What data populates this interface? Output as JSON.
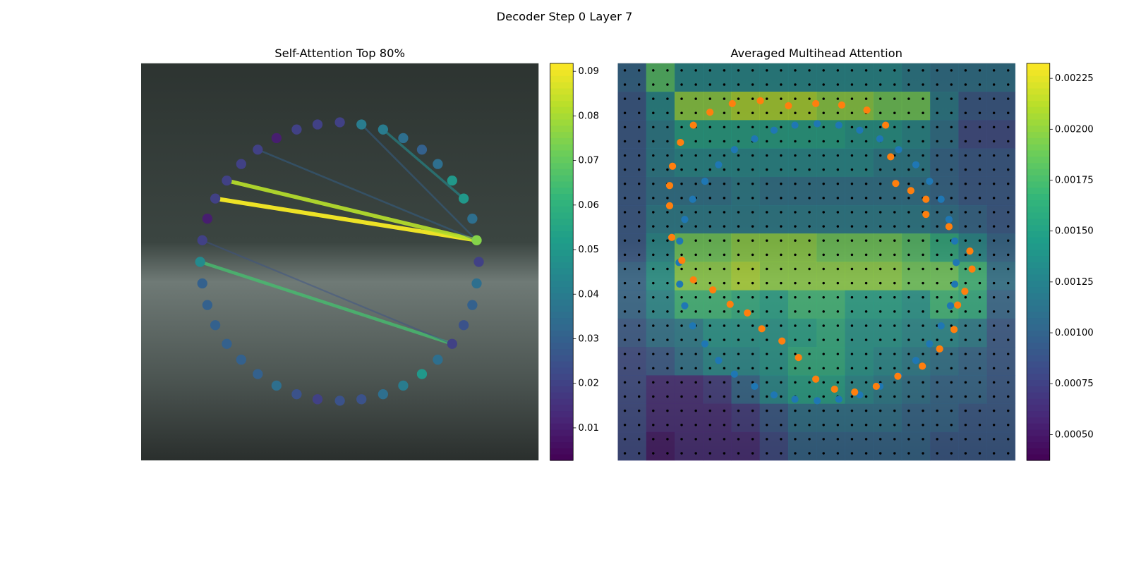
{
  "title": "Decoder Step 0 Layer 7",
  "chart_data": [
    {
      "type": "scatter",
      "title": "Self-Attention Top 80%",
      "colormap": "viridis",
      "xlim": [
        0,
        552
      ],
      "ylim": [
        552,
        0
      ],
      "x": [
        276,
        306,
        336,
        364,
        390,
        412,
        432,
        448,
        460,
        466,
        469,
        466,
        460,
        448,
        432,
        412,
        390,
        364,
        336,
        306,
        276,
        245,
        216,
        188,
        162,
        139,
        119,
        103,
        92,
        85,
        82,
        85,
        92,
        103,
        119,
        139,
        162,
        188,
        216,
        245
      ],
      "y": [
        82,
        85,
        92,
        104,
        120,
        140,
        163,
        188,
        216,
        246,
        276,
        306,
        336,
        364,
        390,
        412,
        432,
        448,
        460,
        467,
        469,
        467,
        460,
        448,
        432,
        412,
        390,
        364,
        336,
        306,
        276,
        246,
        216,
        188,
        163,
        140,
        120,
        104,
        92,
        85
      ],
      "values": [
        0.02,
        0.04,
        0.04,
        0.035,
        0.03,
        0.035,
        0.05,
        0.05,
        0.035,
        0.075,
        0.02,
        0.035,
        0.03,
        0.025,
        0.02,
        0.035,
        0.05,
        0.04,
        0.035,
        0.025,
        0.025,
        0.02,
        0.025,
        0.035,
        0.03,
        0.03,
        0.03,
        0.03,
        0.03,
        0.03,
        0.045,
        0.02,
        0.01,
        0.02,
        0.02,
        0.02,
        0.02,
        0.01,
        0.02,
        0.02
      ],
      "edges": [
        {
          "source": 33,
          "target": 9,
          "value": 0.09
        },
        {
          "source": 34,
          "target": 9,
          "value": 0.082
        },
        {
          "source": 30,
          "target": 14,
          "value": 0.065
        },
        {
          "source": 2,
          "target": 7,
          "value": 0.045
        },
        {
          "source": 36,
          "target": 9,
          "value": 0.03
        },
        {
          "source": 1,
          "target": 9,
          "value": 0.03
        },
        {
          "source": 31,
          "target": 14,
          "value": 0.025
        }
      ],
      "clim": [
        0.0027,
        0.0918
      ],
      "cticks": [
        0.01,
        0.02,
        0.03,
        0.04,
        0.05,
        0.06,
        0.07,
        0.08,
        0.09
      ]
    },
    {
      "type": "heatmap",
      "title": "Averaged Multihead Attention",
      "colormap": "viridis",
      "xlim": [
        0,
        552
      ],
      "ylim": [
        552,
        0
      ],
      "values": [
        [
          0.001,
          0.0018,
          0.0013,
          0.0013,
          0.0013,
          0.0013,
          0.0013,
          0.0013,
          0.0013,
          0.0013,
          0.0012,
          0.0011,
          0.0011,
          0.0011
        ],
        [
          0.0009,
          0.0013,
          0.002,
          0.002,
          0.0021,
          0.0021,
          0.0021,
          0.002,
          0.002,
          0.0019,
          0.0019,
          0.0012,
          0.0009,
          0.0009
        ],
        [
          0.0009,
          0.0012,
          0.0015,
          0.0015,
          0.0015,
          0.0015,
          0.0015,
          0.0015,
          0.0014,
          0.0014,
          0.0013,
          0.0011,
          0.0008,
          0.0008
        ],
        [
          0.0009,
          0.0012,
          0.0013,
          0.0013,
          0.0013,
          0.0013,
          0.0013,
          0.0013,
          0.0013,
          0.0012,
          0.0012,
          0.001,
          0.0009,
          0.0009
        ],
        [
          0.0009,
          0.0011,
          0.0011,
          0.0011,
          0.0012,
          0.0011,
          0.0011,
          0.0011,
          0.0011,
          0.0011,
          0.0011,
          0.001,
          0.0009,
          0.0009
        ],
        [
          0.0009,
          0.0012,
          0.0012,
          0.0012,
          0.0012,
          0.0012,
          0.0012,
          0.0012,
          0.0012,
          0.0012,
          0.0012,
          0.0011,
          0.001,
          0.0009
        ],
        [
          0.0009,
          0.0013,
          0.0019,
          0.0019,
          0.002,
          0.002,
          0.002,
          0.0019,
          0.0019,
          0.0019,
          0.0018,
          0.0016,
          0.0013,
          0.001
        ],
        [
          0.001,
          0.0014,
          0.002,
          0.002,
          0.0021,
          0.002,
          0.002,
          0.002,
          0.002,
          0.002,
          0.0019,
          0.0019,
          0.0017,
          0.0011
        ],
        [
          0.001,
          0.0013,
          0.0017,
          0.0017,
          0.0016,
          0.0015,
          0.0017,
          0.0017,
          0.0015,
          0.0015,
          0.0014,
          0.0017,
          0.0016,
          0.001
        ],
        [
          0.0009,
          0.0011,
          0.0012,
          0.0014,
          0.0014,
          0.0014,
          0.0015,
          0.0016,
          0.0014,
          0.0014,
          0.0013,
          0.0013,
          0.0012,
          0.0009
        ],
        [
          0.0008,
          0.0009,
          0.0011,
          0.0013,
          0.0013,
          0.0014,
          0.0016,
          0.0016,
          0.0014,
          0.0013,
          0.0012,
          0.0011,
          0.001,
          0.0009
        ],
        [
          0.0008,
          0.0006,
          0.0006,
          0.0007,
          0.001,
          0.0013,
          0.0015,
          0.0015,
          0.0013,
          0.0012,
          0.0011,
          0.001,
          0.001,
          0.0009
        ],
        [
          0.0008,
          0.0006,
          0.0006,
          0.0006,
          0.0007,
          0.0009,
          0.0011,
          0.0011,
          0.0011,
          0.0011,
          0.001,
          0.001,
          0.0009,
          0.0009
        ],
        [
          0.0008,
          0.0005,
          0.0006,
          0.0006,
          0.0006,
          0.0008,
          0.001,
          0.001,
          0.001,
          0.001,
          0.001,
          0.0009,
          0.0009,
          0.0009
        ]
      ],
      "series": [
        {
          "color": "#1f77b4",
          "x": [
            277,
            307,
            336,
            364,
            390,
            414,
            433,
            449,
            460,
            468,
            470,
            468,
            462,
            449,
            433,
            414,
            390,
            364,
            336,
            307,
            277,
            246,
            217,
            190,
            162,
            140,
            121,
            104,
            93,
            86,
            85,
            86,
            93,
            104,
            121,
            140,
            162,
            190,
            217,
            246
          ],
          "y": [
            84,
            86,
            93,
            105,
            120,
            141,
            164,
            189,
            217,
            247,
            277,
            307,
            337,
            365,
            390,
            413,
            434,
            449,
            461,
            467,
            469,
            467,
            461,
            449,
            432,
            413,
            390,
            365,
            337,
            307,
            277,
            247,
            217,
            189,
            164,
            141,
            120,
            105,
            93,
            86
          ]
        },
        {
          "color": "#ff7f0e",
          "x": [
            198,
            237,
            275,
            311,
            346,
            372,
            379,
            386,
            407,
            428,
            428,
            460,
            489,
            492,
            482,
            472,
            467,
            447,
            423,
            389,
            359,
            329,
            301,
            275,
            251,
            228,
            200,
            180,
            156,
            132,
            105,
            89,
            75,
            72,
            72,
            76,
            87,
            105,
            128,
            159
          ],
          "y": [
            52,
            59,
            56,
            58,
            65,
            86,
            130,
            167,
            177,
            189,
            210,
            227,
            261,
            286,
            317,
            336,
            370,
            397,
            421,
            435,
            449,
            457,
            453,
            439,
            409,
            386,
            369,
            347,
            335,
            315,
            301,
            274,
            242,
            198,
            170,
            143,
            110,
            86,
            68,
            56
          ]
        }
      ],
      "clim": [
        0.000373,
        0.002324
      ],
      "cticks": [
        {
          "value": 0.0005,
          "label": "0.00050"
        },
        {
          "value": 0.00075,
          "label": "0.00075"
        },
        {
          "value": 0.001,
          "label": "0.00100"
        },
        {
          "value": 0.00125,
          "label": "0.00125"
        },
        {
          "value": 0.0015,
          "label": "0.00150"
        },
        {
          "value": 0.00175,
          "label": "0.00175"
        },
        {
          "value": 0.002,
          "label": "0.00200"
        },
        {
          "value": 0.00225,
          "label": "0.00225"
        }
      ]
    }
  ]
}
